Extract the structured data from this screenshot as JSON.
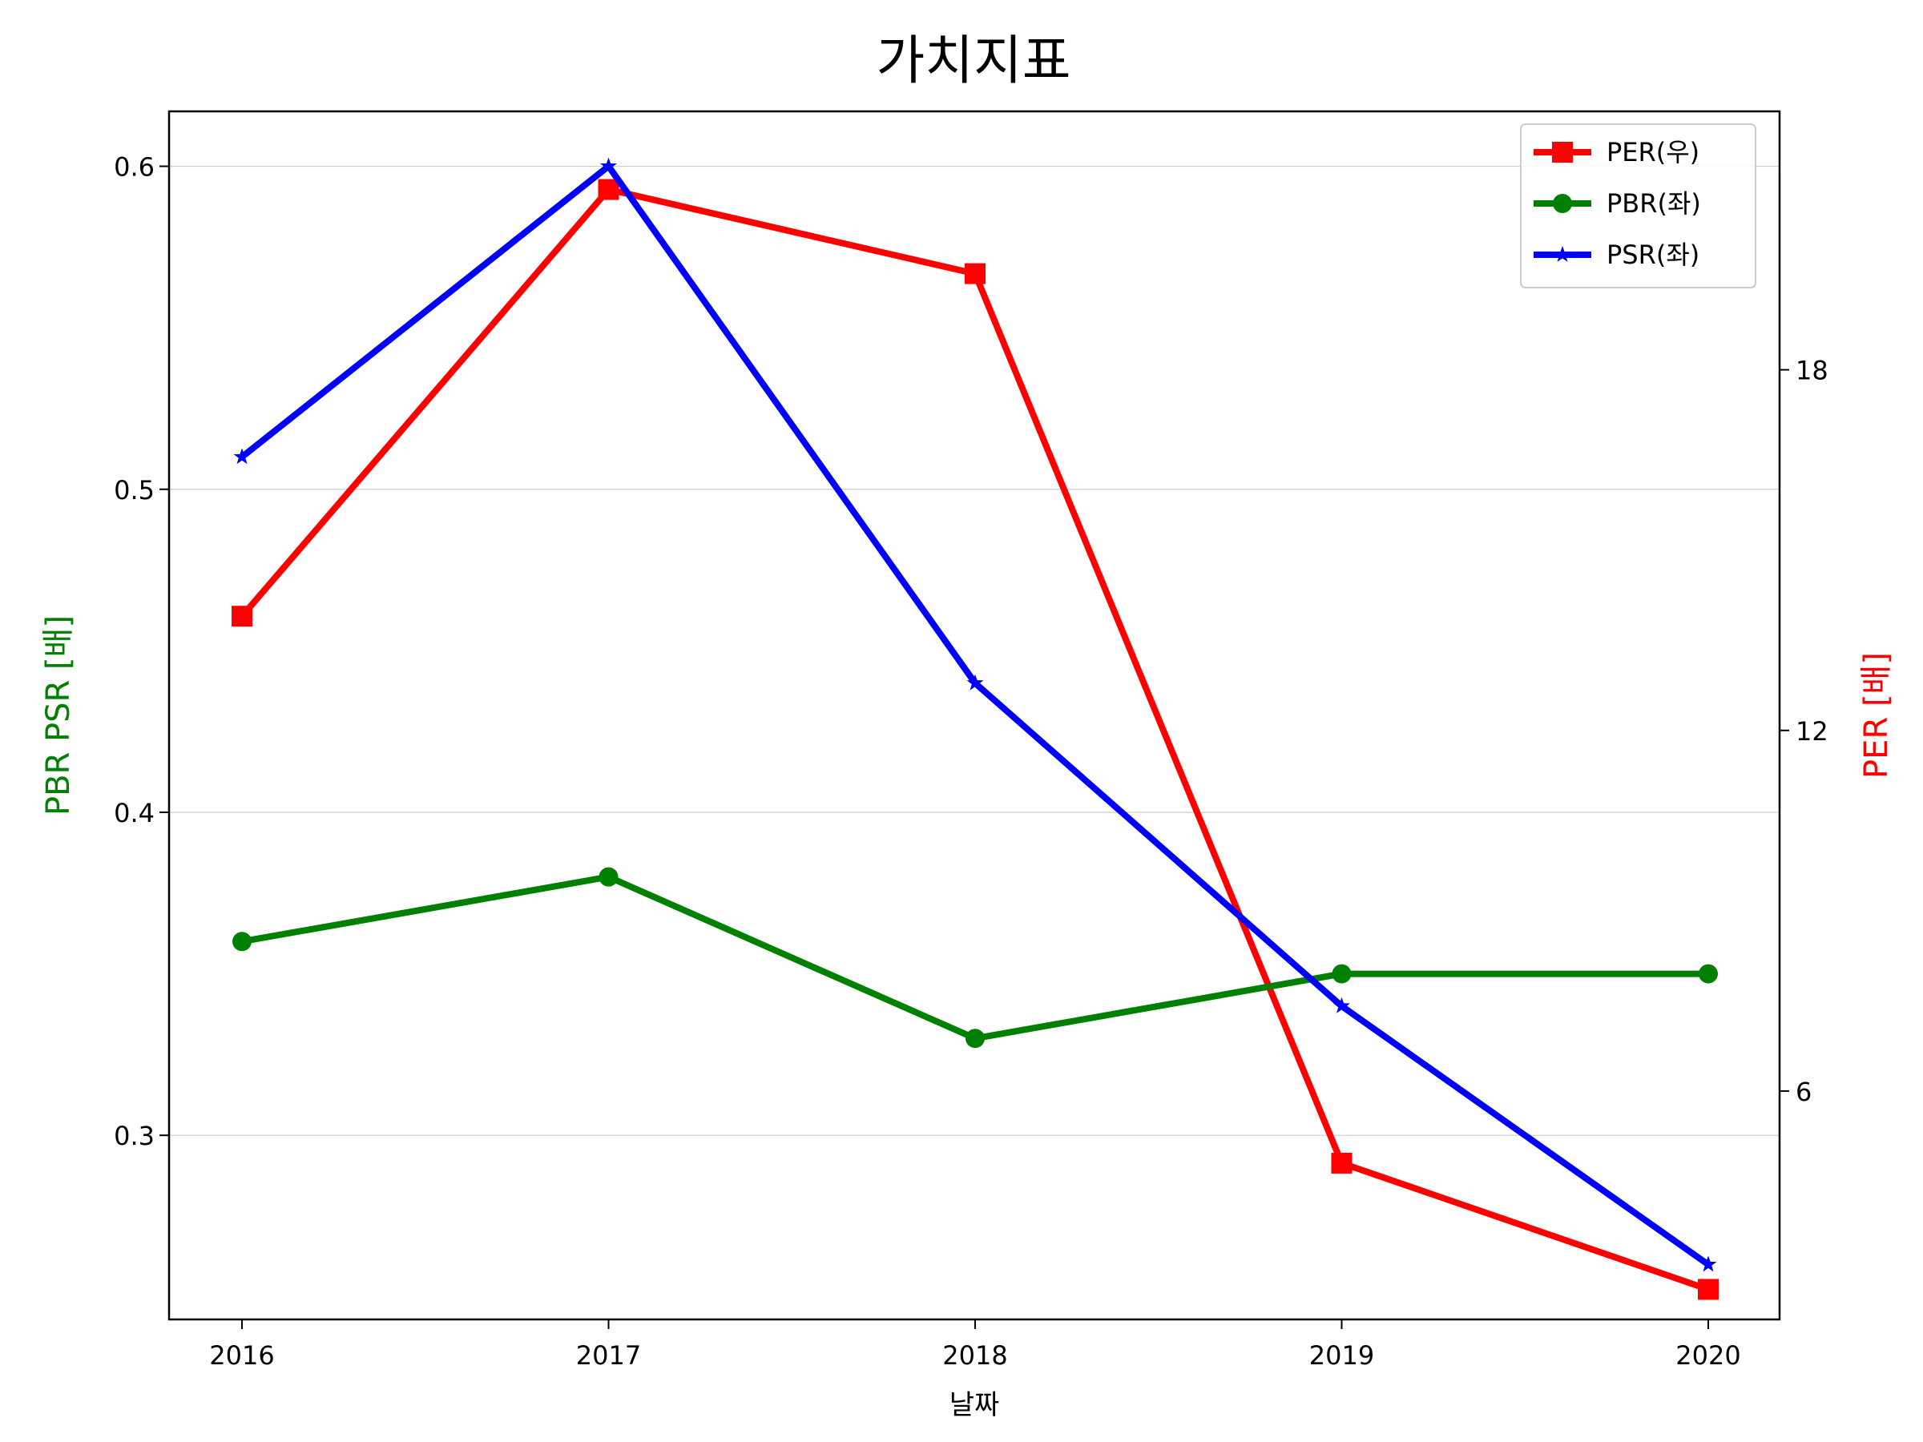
{
  "chart_data": {
    "type": "line",
    "title": "가치지표",
    "xlabel": "날짜",
    "ylabel_left": "PBR PSR [배]",
    "ylabel_right": "PER [배]",
    "x": [
      "2016",
      "2017",
      "2018",
      "2019",
      "2020"
    ],
    "ylim_left": [
      0.243,
      0.617
    ],
    "ylim_right": [
      2.2,
      22.3
    ],
    "yticks_left": [
      "0.3",
      "0.4",
      "0.5",
      "0.6"
    ],
    "yticks_right": [
      "6",
      "12",
      "18"
    ],
    "grid": "horizontal",
    "legend_position": "top-right",
    "series": [
      {
        "name": "PER(우)",
        "axis": "right",
        "color": "#ff0000",
        "marker": "square",
        "values": [
          13.9,
          21.0,
          19.6,
          4.8,
          2.7
        ]
      },
      {
        "name": "PBR(좌)",
        "axis": "left",
        "color": "#008000",
        "marker": "circle",
        "values": [
          0.36,
          0.38,
          0.33,
          0.35,
          0.35
        ]
      },
      {
        "name": "PSR(좌)",
        "axis": "left",
        "color": "#0000ff",
        "marker": "star",
        "values": [
          0.51,
          0.6,
          0.44,
          0.34,
          0.26
        ]
      }
    ]
  }
}
